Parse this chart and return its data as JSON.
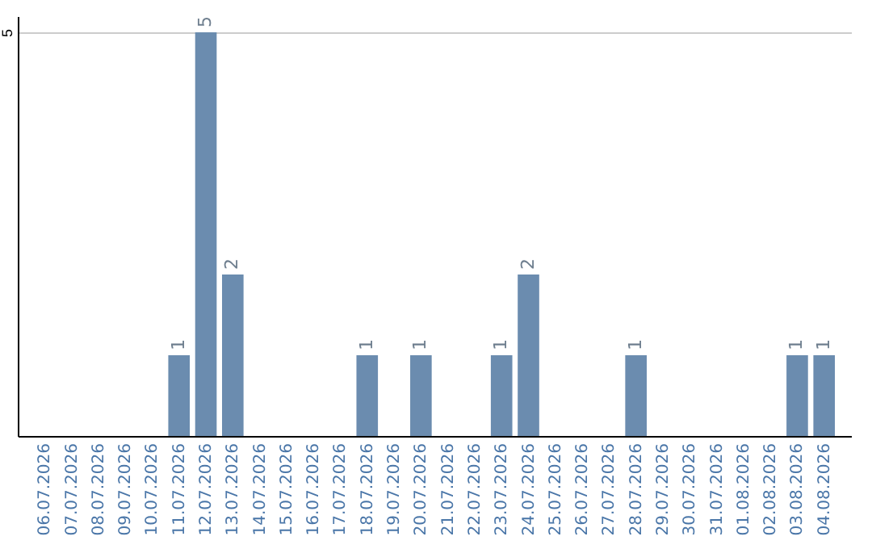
{
  "chart_data": {
    "type": "bar",
    "categories": [
      "06.07.2026",
      "07.07.2026",
      "08.07.2026",
      "09.07.2026",
      "10.07.2026",
      "11.07.2026",
      "12.07.2026",
      "13.07.2026",
      "14.07.2026",
      "15.07.2026",
      "16.07.2026",
      "17.07.2026",
      "18.07.2026",
      "19.07.2026",
      "20.07.2026",
      "21.07.2026",
      "22.07.2026",
      "23.07.2026",
      "24.07.2026",
      "25.07.2026",
      "26.07.2026",
      "27.07.2026",
      "28.07.2026",
      "29.07.2026",
      "30.07.2026",
      "31.07.2026",
      "01.08.2026",
      "02.08.2026",
      "03.08.2026",
      "04.08.2026"
    ],
    "values": [
      0,
      0,
      0,
      0,
      0,
      1,
      5,
      2,
      0,
      0,
      0,
      0,
      1,
      0,
      1,
      0,
      0,
      1,
      2,
      0,
      0,
      0,
      1,
      0,
      0,
      0,
      0,
      0,
      1,
      1
    ],
    "value_labels": [
      null,
      null,
      null,
      null,
      null,
      "1",
      "5",
      "2",
      null,
      null,
      null,
      null,
      "1",
      null,
      "1",
      null,
      null,
      "1",
      "2",
      null,
      null,
      null,
      "1",
      null,
      null,
      null,
      null,
      null,
      "1",
      "1"
    ],
    "color": "#6b8caf",
    "ylim": [
      0,
      5.2
    ],
    "yticks": [
      5
    ],
    "grid": "y"
  }
}
